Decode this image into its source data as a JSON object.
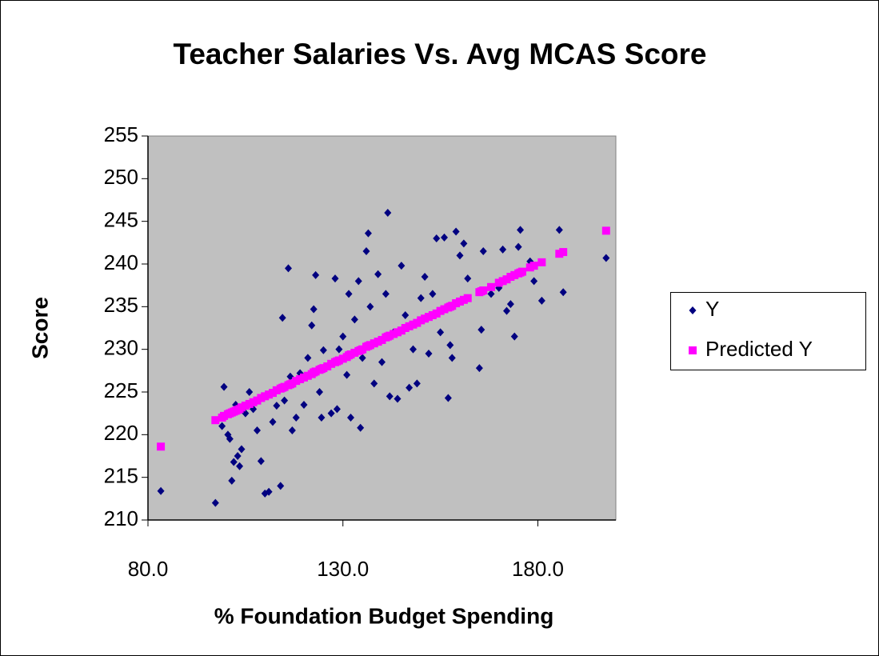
{
  "chart_data": {
    "type": "scatter",
    "title": "Teacher Salaries Vs. Avg MCAS Score",
    "x_label": "% Foundation Budget Spending",
    "y_label": "Score",
    "xlim": [
      80,
      200
    ],
    "xticks": [
      {
        "value": 80,
        "label": "80.0"
      },
      {
        "value": 130,
        "label": "130.0"
      },
      {
        "value": 180,
        "label": "180.0"
      }
    ],
    "ylim": [
      210,
      255
    ],
    "yticks": [
      210,
      215,
      220,
      225,
      230,
      235,
      240,
      245,
      250,
      255
    ],
    "legend": "right",
    "x": [
      83.3,
      97.3,
      99.0,
      99.5,
      100.5,
      101.0,
      101.5,
      102.0,
      102.5,
      103.0,
      103.5,
      104.0,
      105.0,
      106.0,
      107.0,
      108.0,
      109.0,
      110.0,
      111.0,
      112.0,
      113.0,
      114.0,
      114.5,
      115.0,
      116.0,
      116.5,
      117.0,
      118.0,
      119.0,
      120.0,
      121.0,
      122.0,
      122.5,
      123.0,
      124.0,
      124.5,
      125.0,
      126.0,
      127.0,
      128.0,
      128.5,
      129.0,
      130.0,
      131.0,
      131.5,
      132.0,
      133.0,
      134.0,
      134.5,
      135.0,
      136.0,
      136.5,
      137.0,
      138.0,
      139.0,
      140.0,
      141.0,
      141.5,
      142.0,
      143.0,
      144.0,
      145.0,
      146.0,
      147.0,
      148.0,
      149.0,
      150.0,
      151.0,
      152.0,
      153.0,
      154.0,
      155.0,
      156.0,
      157.0,
      157.5,
      158.0,
      159.0,
      160.0,
      161.0,
      162.0,
      165.0,
      165.5,
      166.0,
      168.0,
      170.0,
      171.0,
      172.0,
      173.0,
      174.0,
      175.0,
      175.5,
      176.0,
      178.0,
      179.0,
      181.0,
      185.5,
      186.5,
      197.5
    ],
    "series": [
      {
        "name": "Y",
        "color": "#000080",
        "marker": "diamond",
        "values": [
          213.4,
          212.0,
          221.0,
          225.6,
          220.0,
          219.5,
          214.6,
          216.8,
          223.5,
          217.5,
          216.3,
          218.3,
          222.5,
          225.0,
          223.0,
          220.5,
          216.9,
          213.1,
          213.3,
          221.5,
          223.4,
          214.0,
          233.7,
          224.0,
          239.5,
          226.8,
          220.5,
          222.0,
          227.2,
          223.5,
          229.0,
          232.8,
          234.7,
          238.7,
          225.0,
          222.0,
          229.9,
          228.0,
          222.5,
          238.3,
          223.0,
          230.0,
          231.5,
          227.0,
          236.5,
          222.0,
          233.5,
          238.0,
          220.8,
          229.0,
          241.5,
          243.6,
          235.0,
          226.0,
          238.8,
          228.5,
          236.5,
          246.0,
          224.5,
          232.0,
          224.2,
          239.8,
          234.0,
          225.5,
          230.0,
          226.0,
          236.0,
          238.5,
          229.5,
          236.5,
          243.0,
          232.0,
          243.1,
          224.3,
          230.5,
          229.0,
          243.8,
          241.0,
          242.4,
          238.3,
          227.8,
          232.3,
          241.5,
          236.5,
          237.2,
          241.7,
          234.5,
          235.3,
          231.5,
          242.0,
          244.0,
          239.0,
          240.3,
          238.0,
          235.7,
          244.0,
          236.7,
          240.7
        ]
      },
      {
        "name": "Predicted Y",
        "color": "#ff00ff",
        "marker": "square",
        "values": [
          218.6,
          221.7,
          222.0,
          222.2,
          222.4,
          222.5,
          222.6,
          222.7,
          222.8,
          222.9,
          223.0,
          223.2,
          223.4,
          223.6,
          223.8,
          224.0,
          224.3,
          224.5,
          224.7,
          224.9,
          225.2,
          225.4,
          225.5,
          225.6,
          225.8,
          225.9,
          226.0,
          226.3,
          226.5,
          226.7,
          226.9,
          227.1,
          227.3,
          227.4,
          227.6,
          227.7,
          227.8,
          228.0,
          228.3,
          228.5,
          228.6,
          228.7,
          228.9,
          229.1,
          229.3,
          229.4,
          229.6,
          229.8,
          229.9,
          230.0,
          230.3,
          230.4,
          230.5,
          230.7,
          230.9,
          231.1,
          231.4,
          231.5,
          231.6,
          231.8,
          232.0,
          232.2,
          232.5,
          232.7,
          232.9,
          233.1,
          233.4,
          233.6,
          233.8,
          234.0,
          234.2,
          234.5,
          234.7,
          234.9,
          235.0,
          235.1,
          235.4,
          235.6,
          235.8,
          236.0,
          236.7,
          236.8,
          236.9,
          237.3,
          237.8,
          238.0,
          238.2,
          238.5,
          238.7,
          238.9,
          239.0,
          239.1,
          239.6,
          239.8,
          240.2,
          241.2,
          241.4,
          243.9
        ]
      }
    ]
  }
}
